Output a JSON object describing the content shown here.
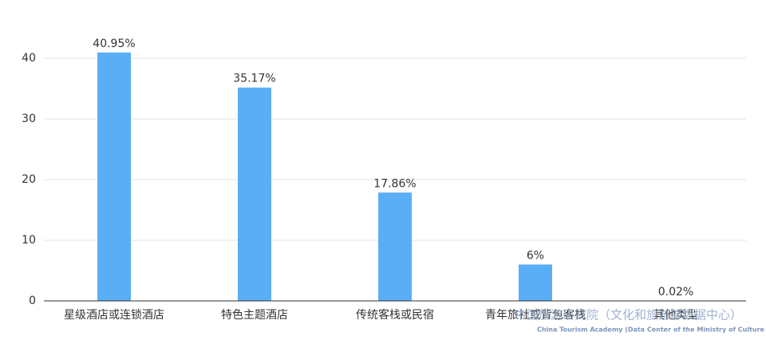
{
  "chart_data": {
    "type": "bar",
    "categories": [
      "星级酒店或连锁酒店",
      "特色主题酒店",
      "传统客栈或民宿",
      "青年旅社或背包客栈",
      "其他类型"
    ],
    "values": [
      40.95,
      35.17,
      17.86,
      6,
      0.02
    ],
    "value_labels": [
      "40.95%",
      "35.17%",
      "17.86%",
      "6%",
      "0.02%"
    ],
    "color": "#5aaef5",
    "ylim": [
      0,
      45
    ],
    "yticks": [
      0,
      10,
      20,
      30,
      40
    ],
    "grid": true,
    "watermark": {
      "title": "中国旅游研究院（文化和旅游部数据中心）",
      "subtitle": "China Tourism Academy (Data Center of the Ministry of Culture and Tourism)"
    }
  }
}
